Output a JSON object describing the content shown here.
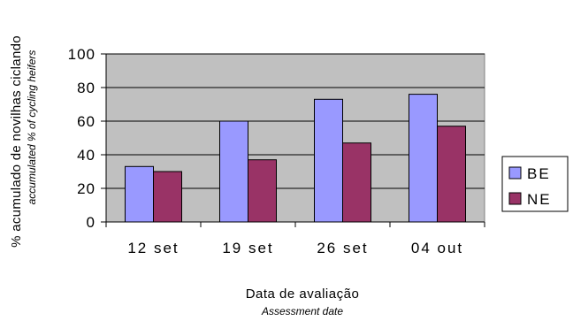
{
  "chart_data": {
    "type": "bar",
    "categories": [
      "12 set",
      "19 set",
      "26 set",
      "04 out"
    ],
    "series": [
      {
        "name": "BE",
        "values": [
          33,
          60,
          73,
          76
        ],
        "color": "#9999FF"
      },
      {
        "name": "NE",
        "values": [
          30,
          37,
          47,
          57
        ],
        "color": "#993366"
      }
    ],
    "ylim": [
      0,
      100
    ],
    "yticks": [
      0,
      20,
      40,
      60,
      80,
      100
    ],
    "ylabel": "% acumulado de novilhas ciclando",
    "ylabel_sub": "accumulated % of cycling heifers",
    "xlabel": "Data de avaliação",
    "xlabel_sub": "Assessment date",
    "grid": true,
    "plot_background": "#C0C0C0",
    "legend_position": "right"
  }
}
